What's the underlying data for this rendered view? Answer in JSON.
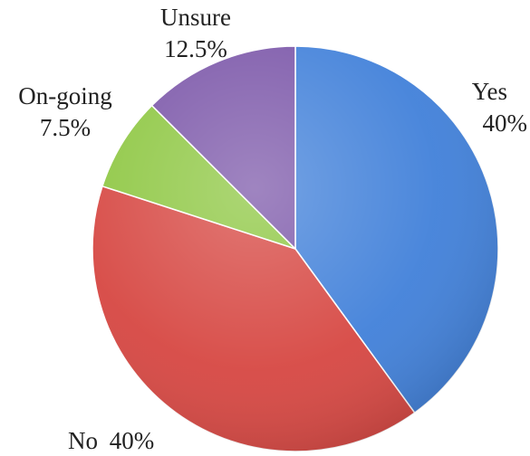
{
  "chart_data": {
    "type": "pie",
    "slices": [
      {
        "label": "Yes",
        "value": 40,
        "value_text": "40%",
        "color": "#3f7fd9"
      },
      {
        "label": "No",
        "value": 40,
        "value_text": "40%",
        "color": "#d64540"
      },
      {
        "label": "On-going",
        "value": 7.5,
        "value_text": "7.5%",
        "color": "#8cc63f"
      },
      {
        "label": "Unsure",
        "value": 12.5,
        "value_text": "12.5%",
        "color": "#7a55a8"
      }
    ],
    "start_angle": "12 o'clock",
    "direction": "clockwise"
  }
}
